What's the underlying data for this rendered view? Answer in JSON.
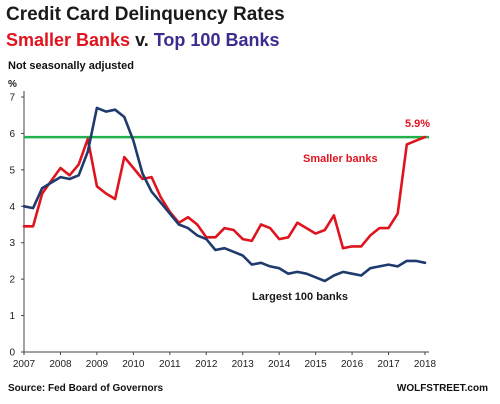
{
  "header": {
    "title": "Credit Card Delinquency Rates",
    "subtitle_red": "Smaller Banks",
    "subtitle_sep": " v. ",
    "subtitle_blue": "Top 100 Banks",
    "note": "Not seasonally adjusted"
  },
  "footer": {
    "source": "Source: Fed Board of Governors",
    "brand": "WOLFSTREET.com"
  },
  "colors": {
    "smaller": "#e0141e",
    "largest": "#1f3b6d",
    "reference": "#22b04b",
    "axis": "#444444"
  },
  "chart_data": {
    "type": "line",
    "ylabel": "%",
    "ylim": [
      0,
      7
    ],
    "xlim": [
      2007,
      2018
    ],
    "yticks": [
      "0",
      "1",
      "2",
      "3",
      "4",
      "5",
      "6",
      "7"
    ],
    "xticks": [
      "2007",
      "2008",
      "2009",
      "2010",
      "2011",
      "2012",
      "2013",
      "2014",
      "2015",
      "2016",
      "2017",
      "2018"
    ],
    "grid": false,
    "reference_line": {
      "value": 5.9
    },
    "annotations": {
      "last_value": "5.9%",
      "smaller_label": "Smaller banks",
      "largest_label": "Largest 100 banks"
    },
    "series": [
      {
        "name": "Smaller banks",
        "x": [
          2007.0,
          2007.25,
          2007.5,
          2007.75,
          2008.0,
          2008.25,
          2008.5,
          2008.75,
          2009.0,
          2009.25,
          2009.5,
          2009.75,
          2010.0,
          2010.25,
          2010.5,
          2010.75,
          2011.0,
          2011.25,
          2011.5,
          2011.75,
          2012.0,
          2012.25,
          2012.5,
          2012.75,
          2013.0,
          2013.25,
          2013.5,
          2013.75,
          2014.0,
          2014.25,
          2014.5,
          2014.75,
          2015.0,
          2015.25,
          2015.5,
          2015.75,
          2016.0,
          2016.25,
          2016.5,
          2016.75,
          2017.0,
          2017.25,
          2017.5,
          2017.75,
          2018.0
        ],
        "values": [
          3.45,
          3.45,
          4.35,
          4.7,
          5.05,
          4.85,
          5.15,
          5.85,
          4.55,
          4.35,
          4.2,
          5.35,
          5.05,
          4.75,
          4.8,
          4.25,
          3.85,
          3.55,
          3.7,
          3.5,
          3.15,
          3.15,
          3.4,
          3.35,
          3.1,
          3.05,
          3.5,
          3.4,
          3.1,
          3.15,
          3.55,
          3.4,
          3.25,
          3.35,
          3.75,
          2.85,
          2.9,
          2.9,
          3.2,
          3.4,
          3.4,
          3.8,
          5.7,
          5.8,
          5.9
        ]
      },
      {
        "name": "Largest 100 banks",
        "x": [
          2007.0,
          2007.25,
          2007.5,
          2007.75,
          2008.0,
          2008.25,
          2008.5,
          2008.75,
          2009.0,
          2009.25,
          2009.5,
          2009.75,
          2010.0,
          2010.25,
          2010.5,
          2010.75,
          2011.0,
          2011.25,
          2011.5,
          2011.75,
          2012.0,
          2012.25,
          2012.5,
          2012.75,
          2013.0,
          2013.25,
          2013.5,
          2013.75,
          2014.0,
          2014.25,
          2014.5,
          2014.75,
          2015.0,
          2015.25,
          2015.5,
          2015.75,
          2016.0,
          2016.25,
          2016.5,
          2016.75,
          2017.0,
          2017.25,
          2017.5,
          2017.75,
          2018.0
        ],
        "values": [
          4.0,
          3.95,
          4.5,
          4.65,
          4.8,
          4.75,
          4.85,
          5.5,
          6.7,
          6.6,
          6.65,
          6.45,
          5.8,
          4.9,
          4.4,
          4.1,
          3.8,
          3.5,
          3.4,
          3.2,
          3.1,
          2.8,
          2.85,
          2.75,
          2.65,
          2.4,
          2.45,
          2.35,
          2.3,
          2.15,
          2.2,
          2.15,
          2.05,
          1.95,
          2.1,
          2.2,
          2.15,
          2.1,
          2.3,
          2.35,
          2.4,
          2.35,
          2.5,
          2.5,
          2.45
        ]
      }
    ]
  }
}
